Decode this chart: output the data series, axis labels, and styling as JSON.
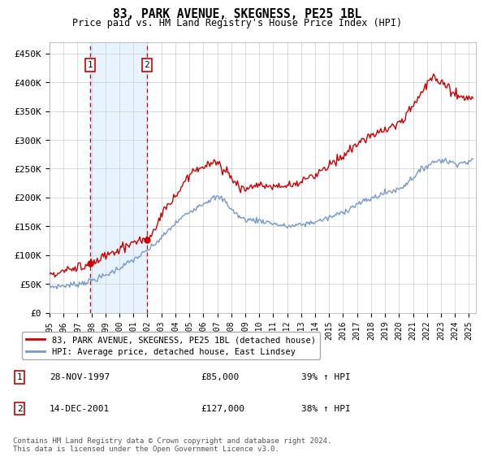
{
  "title": "83, PARK AVENUE, SKEGNESS, PE25 1BL",
  "subtitle": "Price paid vs. HM Land Registry's House Price Index (HPI)",
  "ylabel_ticks": [
    "£0",
    "£50K",
    "£100K",
    "£150K",
    "£200K",
    "£250K",
    "£300K",
    "£350K",
    "£400K",
    "£450K"
  ],
  "ytick_values": [
    0,
    50000,
    100000,
    150000,
    200000,
    250000,
    300000,
    350000,
    400000,
    450000
  ],
  "ylim": [
    0,
    470000
  ],
  "xlim_start": 1995.0,
  "xlim_end": 2025.5,
  "hpi_color": "#7799cc",
  "price_color": "#cc0000",
  "sale1_x": 1997.92,
  "sale1_y": 85000,
  "sale2_x": 2001.96,
  "sale2_y": 127000,
  "vline_color": "#cc0000",
  "shade_color": "#ddeeff",
  "legend_label_red": "83, PARK AVENUE, SKEGNESS, PE25 1BL (detached house)",
  "legend_label_blue": "HPI: Average price, detached house, East Lindsey",
  "table_row1": [
    "1",
    "28-NOV-1997",
    "£85,000",
    "39% ↑ HPI"
  ],
  "table_row2": [
    "2",
    "14-DEC-2001",
    "£127,000",
    "38% ↑ HPI"
  ],
  "footnote": "Contains HM Land Registry data © Crown copyright and database right 2024.\nThis data is licensed under the Open Government Licence v3.0.",
  "grid_color": "#cccccc",
  "hpi_keypoints_x": [
    1995.0,
    1996.0,
    1997.0,
    1998.0,
    1999.0,
    2000.0,
    2001.0,
    2002.0,
    2003.0,
    2004.0,
    2005.0,
    2006.0,
    2007.0,
    2007.5,
    2008.0,
    2009.0,
    2010.0,
    2011.0,
    2012.0,
    2013.0,
    2014.0,
    2015.0,
    2016.0,
    2017.0,
    2018.0,
    2019.0,
    2020.0,
    2021.0,
    2022.0,
    2023.0,
    2024.0,
    2025.0
  ],
  "hpi_keypoints_y": [
    45000,
    47000,
    50000,
    56000,
    65000,
    78000,
    92000,
    108000,
    130000,
    155000,
    175000,
    190000,
    200000,
    195000,
    180000,
    162000,
    160000,
    155000,
    150000,
    153000,
    158000,
    165000,
    175000,
    188000,
    198000,
    208000,
    215000,
    235000,
    255000,
    265000,
    260000,
    262000
  ],
  "red_keypoints_x": [
    1995.0,
    1996.0,
    1997.0,
    1997.92,
    1998.5,
    1999.0,
    2000.0,
    2001.0,
    2001.96,
    2002.5,
    2003.0,
    2004.0,
    2005.0,
    2006.0,
    2007.0,
    2007.5,
    2008.0,
    2009.0,
    2010.0,
    2011.0,
    2012.0,
    2013.0,
    2014.0,
    2015.0,
    2016.0,
    2017.0,
    2018.0,
    2019.0,
    2020.0,
    2021.0,
    2022.0,
    2022.5,
    2023.0,
    2023.5,
    2024.0,
    2025.0
  ],
  "red_keypoints_y": [
    68000,
    72000,
    80000,
    85000,
    90000,
    98000,
    110000,
    122000,
    127000,
    145000,
    168000,
    200000,
    240000,
    255000,
    260000,
    250000,
    235000,
    215000,
    222000,
    218000,
    220000,
    228000,
    240000,
    255000,
    272000,
    292000,
    308000,
    318000,
    330000,
    360000,
    395000,
    410000,
    400000,
    390000,
    380000,
    375000
  ]
}
